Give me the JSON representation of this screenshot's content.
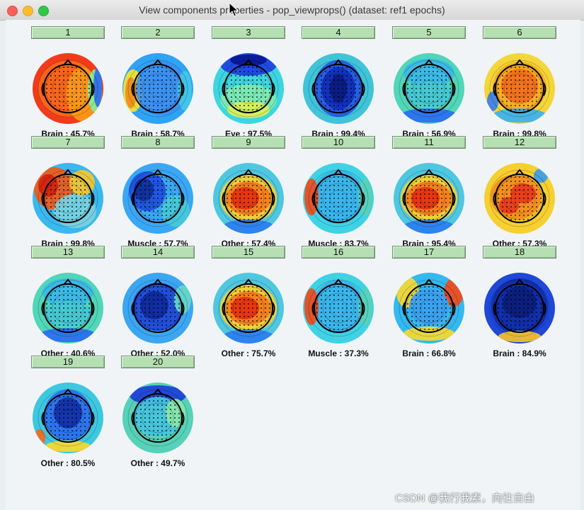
{
  "window": {
    "title": "View components properties - pop_viewprops() (dataset: ref1 epochs)"
  },
  "colors": {
    "button_fill": "#b6e0b3",
    "button_border": "#6f8f70",
    "background": "#f0f4f6"
  },
  "colormap": "jet",
  "components": [
    {
      "number": "1",
      "label": "Brain : 45.7%",
      "pattern": "red"
    },
    {
      "number": "2",
      "label": "Brain : 58.7%",
      "pattern": "light-blue"
    },
    {
      "number": "3",
      "label": "Eye : 97.5%",
      "pattern": "eye"
    },
    {
      "number": "4",
      "label": "Brain : 99.4%",
      "pattern": "deep-blue-center"
    },
    {
      "number": "5",
      "label": "Brain : 56.9%",
      "pattern": "cyan-green"
    },
    {
      "number": "6",
      "label": "Brain : 99.8%",
      "pattern": "orange-center"
    },
    {
      "number": "7",
      "label": "Brain : 99.8%",
      "pattern": "red-left"
    },
    {
      "number": "8",
      "label": "Muscle : 57.7%",
      "pattern": "blue-left"
    },
    {
      "number": "9",
      "label": "Other : 57.4%",
      "pattern": "red-center"
    },
    {
      "number": "10",
      "label": "Muscle : 83.7%",
      "pattern": "cyan"
    },
    {
      "number": "11",
      "label": "Brain : 95.4%",
      "pattern": "red-center"
    },
    {
      "number": "12",
      "label": "Other : 57.3%",
      "pattern": "red-patchy"
    },
    {
      "number": "13",
      "label": "Other : 40.6%",
      "pattern": "cyan-green"
    },
    {
      "number": "14",
      "label": "Other : 52.0%",
      "pattern": "blue-dark"
    },
    {
      "number": "15",
      "label": "Other : 75.7%",
      "pattern": "red-center"
    },
    {
      "number": "16",
      "label": "Muscle : 37.3%",
      "pattern": "cyan"
    },
    {
      "number": "17",
      "label": "Brain : 66.8%",
      "pattern": "yellow-rim"
    },
    {
      "number": "18",
      "label": "Brain : 84.9%",
      "pattern": "deep-blue"
    },
    {
      "number": "19",
      "label": "Other : 80.5%",
      "pattern": "blue-center"
    },
    {
      "number": "20",
      "label": "Other : 49.7%",
      "pattern": "cyan-dots"
    }
  ],
  "watermark": "CSDN @我行我素，向往自由"
}
